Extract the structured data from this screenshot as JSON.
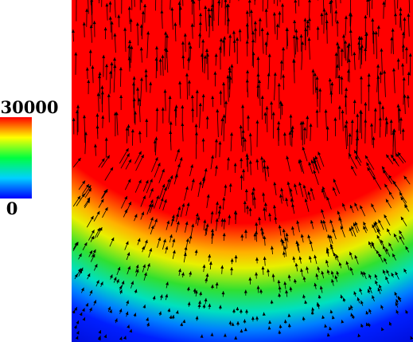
{
  "chart_data": {
    "type": "heatmap",
    "colormap": "jet",
    "colorbar": {
      "lim": [
        0,
        30000
      ],
      "ticks": [
        0,
        30000
      ]
    }
  }
}
